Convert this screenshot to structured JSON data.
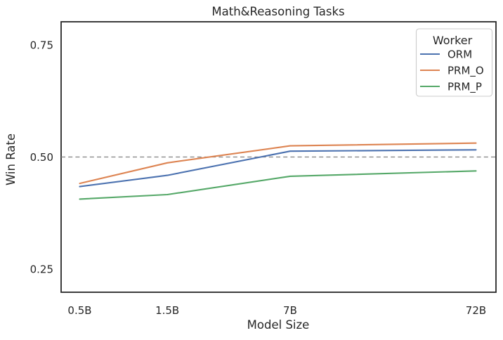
{
  "chart_data": {
    "type": "line",
    "title": "Math&Reasoning Tasks",
    "xlabel": "Model Size",
    "ylabel": "Win Rate",
    "x_scale": "log",
    "grid": false,
    "categories": [
      "0.5B",
      "1.5B",
      "7B",
      "72B"
    ],
    "x_values": [
      0.5,
      1.5,
      7,
      72
    ],
    "series": [
      {
        "name": "ORM",
        "color": "#4C72B0",
        "values": [
          0.434,
          0.459,
          0.513,
          0.516
        ]
      },
      {
        "name": "PRM_O",
        "color": "#DD8452",
        "values": [
          0.441,
          0.487,
          0.525,
          0.531
        ]
      },
      {
        "name": "PRM_P",
        "color": "#55A868",
        "values": [
          0.406,
          0.416,
          0.457,
          0.469
        ]
      }
    ],
    "y_tick_labels": [
      "0.25",
      "0.50",
      "0.75"
    ],
    "y_tick_values": [
      0.25,
      0.5,
      0.75
    ],
    "ylim": [
      0.198,
      0.802
    ],
    "xlim": [
      0.4,
      92.5
    ],
    "reference_line": {
      "value": 0.5,
      "style": "dashed",
      "color": "#7f7f7f"
    },
    "legend": {
      "title": "Worker",
      "position": "upper-right"
    }
  },
  "colors": {
    "text": "#262626",
    "spine": "#262626",
    "legend_border": "#cccccc",
    "background": "#ffffff"
  }
}
